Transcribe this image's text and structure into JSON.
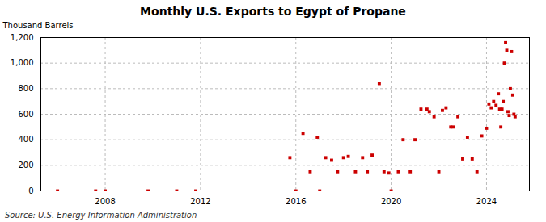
{
  "chart_data": {
    "type": "scatter",
    "title": "Monthly U.S. Exports to Egypt of Propane",
    "ylabel": "Thousand Barrels",
    "annotations": [
      "Source: U.S. Energy Information Administration"
    ],
    "color": "#cc0000",
    "marker": "square",
    "grid": true,
    "xlim": [
      2005.3,
      2025.8
    ],
    "xticks": [
      2008,
      2012,
      2016,
      2020,
      2024
    ],
    "ylim": [
      0,
      1200
    ],
    "yticks": [
      0,
      200,
      400,
      600,
      800,
      {
        "value": 1000,
        "label": "1,000"
      },
      {
        "value": 1200,
        "label": "1,200"
      }
    ],
    "x": [
      2006.0,
      2007.6,
      2008.0,
      2009.8,
      2011.0,
      2011.8,
      2015.75,
      2016.0,
      2016.3,
      2016.6,
      2016.9,
      2017.0,
      2017.25,
      2017.5,
      2017.75,
      2018.0,
      2018.2,
      2018.5,
      2018.8,
      2019.0,
      2019.2,
      2019.5,
      2019.7,
      2019.9,
      2020.0,
      2020.3,
      2020.5,
      2020.8,
      2021.0,
      2021.25,
      2021.5,
      2021.6,
      2021.8,
      2022.0,
      2022.15,
      2022.3,
      2022.5,
      2022.6,
      2022.8,
      2023.0,
      2023.2,
      2023.4,
      2023.6,
      2023.8,
      2024.0,
      2024.1,
      2024.2,
      2024.3,
      2024.4,
      2024.5,
      2024.55,
      2024.6,
      2024.65,
      2024.7,
      2024.75,
      2024.8,
      2024.85,
      2024.9,
      2024.95,
      2025.0,
      2025.05,
      2025.1,
      2025.15,
      2025.2
    ],
    "values": [
      0,
      0,
      0,
      0,
      0,
      0,
      260,
      0,
      450,
      150,
      420,
      0,
      260,
      240,
      150,
      260,
      270,
      150,
      260,
      150,
      280,
      840,
      150,
      140,
      0,
      150,
      400,
      150,
      400,
      640,
      640,
      620,
      580,
      150,
      630,
      650,
      500,
      500,
      580,
      250,
      420,
      250,
      150,
      430,
      490,
      680,
      650,
      700,
      670,
      760,
      640,
      500,
      640,
      700,
      1000,
      1160,
      1100,
      620,
      590,
      800,
      1090,
      750,
      600,
      580
    ]
  }
}
